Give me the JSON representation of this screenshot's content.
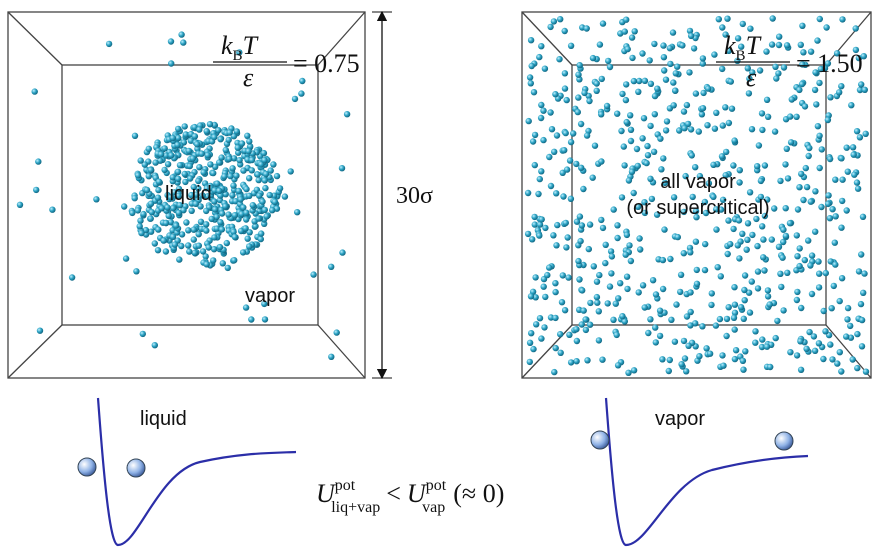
{
  "panels": [
    {
      "temperature": {
        "numerator": "k",
        "subscript": "B",
        "variable": "T",
        "denominator": "ε",
        "value": "= 0.75"
      },
      "labels": [
        "liquid",
        "vapor"
      ]
    },
    {
      "temperature": {
        "numerator": "k",
        "subscript": "B",
        "variable": "T",
        "denominator": "ε",
        "value": "= 1.50"
      },
      "labels": [
        "all vapor",
        "(or supercritical)"
      ]
    }
  ],
  "scale_label": "30σ",
  "potentials": [
    {
      "label": "liquid"
    },
    {
      "label": "vapor"
    }
  ],
  "equation": {
    "symbol": "U",
    "left_sup": "pot",
    "left_sub": "liq+vap",
    "relation": "<",
    "right_sup": "pot",
    "right_sub": "vap",
    "note": "(≈ 0)"
  }
}
